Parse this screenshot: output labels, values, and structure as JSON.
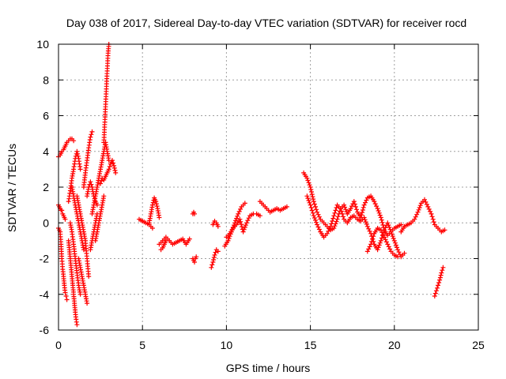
{
  "chart_data": {
    "type": "scatter",
    "title": "Day 038 of 2017, Sidereal Day-to-day VTEC variation (SDTVAR) for receiver rocd",
    "xlabel": "GPS time / hours",
    "ylabel": "SDTVAR / TECUs",
    "xlim": [
      0,
      25
    ],
    "ylim": [
      -6,
      10
    ],
    "xticks": [
      0,
      5,
      10,
      15,
      20,
      25
    ],
    "yticks": [
      -6,
      -4,
      -2,
      0,
      2,
      4,
      6,
      8,
      10
    ],
    "grid": true,
    "marker": "+",
    "color": "#ff0000",
    "series": [
      {
        "name": "t0a",
        "x": [
          0.0,
          0.1,
          0.2,
          0.3,
          0.4,
          0.5,
          0.6,
          0.7,
          0.8,
          0.9
        ],
        "y": [
          3.7,
          3.8,
          4.0,
          4.1,
          4.3,
          4.5,
          4.6,
          4.7,
          4.7,
          4.6
        ]
      },
      {
        "name": "t0b",
        "x": [
          0.0,
          0.05,
          0.1,
          0.15,
          0.2,
          0.25,
          0.3,
          0.35,
          0.4
        ],
        "y": [
          1.0,
          0.9,
          0.8,
          0.7,
          0.7,
          0.5,
          0.4,
          0.3,
          0.2
        ]
      },
      {
        "name": "t0c",
        "x": [
          0.0,
          0.05,
          0.1,
          0.15,
          0.2,
          0.25,
          0.3,
          0.35,
          0.4,
          0.45,
          0.5
        ],
        "y": [
          -0.3,
          -0.4,
          -0.5,
          -1.2,
          -2.0,
          -2.6,
          -3.0,
          -3.5,
          -3.9,
          -4.1,
          -4.3
        ]
      },
      {
        "name": "t1a",
        "x": [
          0.6,
          0.65,
          0.7,
          0.75,
          0.8,
          0.85,
          0.9,
          0.95,
          1.0,
          1.05,
          1.1
        ],
        "y": [
          -1.0,
          -1.5,
          -2.0,
          -2.5,
          -3.0,
          -3.5,
          -4.0,
          -4.5,
          -5.0,
          -5.4,
          -5.7
        ]
      },
      {
        "name": "t1b",
        "x": [
          0.6,
          0.7,
          0.8,
          0.9,
          1.0,
          1.1,
          1.2,
          1.3
        ],
        "y": [
          1.2,
          1.8,
          2.5,
          3.0,
          3.6,
          4.0,
          3.6,
          3.0
        ]
      },
      {
        "name": "t1c",
        "x": [
          0.7,
          0.8,
          0.9,
          1.0,
          1.1,
          1.2,
          1.3
        ],
        "y": [
          0.0,
          -0.5,
          -1.2,
          -2.0,
          -2.8,
          -3.5,
          -4.0
        ]
      },
      {
        "name": "t1d",
        "x": [
          0.8,
          0.9,
          1.0,
          1.1,
          1.2,
          1.3,
          1.4,
          1.5
        ],
        "y": [
          2.0,
          1.5,
          1.0,
          0.5,
          0.0,
          -0.5,
          -1.0,
          -1.5
        ]
      },
      {
        "name": "t1e",
        "x": [
          1.1,
          1.2,
          1.3,
          1.4,
          1.5,
          1.6,
          1.7,
          1.8
        ],
        "y": [
          1.5,
          1.0,
          0.5,
          0.0,
          -0.5,
          -1.0,
          -2.0,
          -3.0
        ]
      },
      {
        "name": "t1f",
        "x": [
          1.2,
          1.3,
          1.4,
          1.5,
          1.6,
          1.7
        ],
        "y": [
          -2.0,
          -2.5,
          -3.0,
          -3.5,
          -4.0,
          -4.5
        ]
      },
      {
        "name": "t1g",
        "x": [
          1.5,
          1.6,
          1.7,
          1.8,
          1.9,
          2.0
        ],
        "y": [
          2.0,
          2.8,
          3.5,
          4.2,
          4.8,
          5.1
        ]
      },
      {
        "name": "t1h",
        "x": [
          1.7,
          1.8,
          1.9,
          2.0,
          2.1,
          2.2,
          2.3
        ],
        "y": [
          1.5,
          2.0,
          2.3,
          2.0,
          1.5,
          1.2,
          1.0
        ]
      },
      {
        "name": "t1i",
        "x": [
          1.9,
          2.0,
          2.1,
          2.2,
          2.3
        ],
        "y": [
          -1.5,
          -1.0,
          -0.5,
          0.0,
          0.5
        ]
      },
      {
        "name": "t2a",
        "x": [
          2.0,
          2.1,
          2.2,
          2.3,
          2.4,
          2.5,
          2.6,
          2.7,
          2.8,
          2.9,
          3.0
        ],
        "y": [
          0.5,
          1.0,
          1.5,
          2.0,
          2.5,
          3.0,
          3.5,
          4.0,
          4.5,
          4.0,
          3.5
        ]
      },
      {
        "name": "t2b",
        "x": [
          2.2,
          2.3,
          2.4,
          2.5,
          2.6,
          2.7
        ],
        "y": [
          -1.0,
          -0.5,
          0.0,
          0.5,
          1.0,
          1.5
        ]
      },
      {
        "name": "t2c",
        "x": [
          2.5,
          2.6,
          2.7,
          2.8,
          2.9,
          3.0,
          3.1,
          3.2,
          3.3,
          3.4
        ],
        "y": [
          2.2,
          2.5,
          2.4,
          2.6,
          2.8,
          3.0,
          3.3,
          3.5,
          3.2,
          2.8
        ]
      },
      {
        "name": "t2d",
        "x": [
          2.7,
          2.75,
          2.8,
          2.85,
          2.9,
          2.95,
          3.0
        ],
        "y": [
          4.5,
          5.5,
          6.5,
          7.5,
          8.5,
          9.5,
          10.0
        ]
      },
      {
        "name": "t5a",
        "x": [
          4.8,
          5.0,
          5.2,
          5.4,
          5.6
        ],
        "y": [
          0.2,
          0.1,
          0.0,
          -0.1,
          -0.3
        ]
      },
      {
        "name": "t5b",
        "x": [
          5.4,
          5.5,
          5.6,
          5.7,
          5.8,
          5.9,
          6.0
        ],
        "y": [
          0.0,
          0.5,
          1.0,
          1.4,
          1.2,
          0.8,
          0.3
        ]
      },
      {
        "name": "t6a",
        "x": [
          6.0,
          6.2,
          6.4,
          6.6,
          6.8,
          7.0,
          7.2,
          7.4,
          7.6,
          7.8
        ],
        "y": [
          -1.2,
          -1.0,
          -0.8,
          -1.0,
          -1.2,
          -1.1,
          -1.0,
          -0.9,
          -1.2,
          -0.9
        ]
      },
      {
        "name": "t6b",
        "x": [
          6.1,
          6.2,
          6.3,
          6.4
        ],
        "y": [
          -1.5,
          -1.4,
          -1.2,
          -1.0
        ]
      },
      {
        "name": "t8a",
        "x": [
          8.0,
          8.05,
          8.1,
          8.15,
          8.2
        ],
        "y": [
          -2.0,
          -2.1,
          -2.2,
          -2.0,
          -1.9
        ]
      },
      {
        "name": "t8b",
        "x": [
          8.0,
          8.05,
          8.1
        ],
        "y": [
          0.5,
          0.6,
          0.5
        ]
      },
      {
        "name": "t9a",
        "x": [
          9.1,
          9.2,
          9.3,
          9.4,
          9.5
        ],
        "y": [
          -2.5,
          -2.2,
          -1.8,
          -1.5,
          -1.6
        ]
      },
      {
        "name": "t9b",
        "x": [
          9.2,
          9.3,
          9.4,
          9.5
        ],
        "y": [
          -0.1,
          0.1,
          0.0,
          -0.2
        ]
      },
      {
        "name": "t10a",
        "x": [
          9.9,
          10.1,
          10.3,
          10.5,
          10.7,
          10.9,
          11.1
        ],
        "y": [
          -1.3,
          -1.0,
          -0.5,
          0.0,
          0.5,
          0.9,
          1.1
        ]
      },
      {
        "name": "t10b",
        "x": [
          10.0,
          10.2,
          10.4,
          10.6,
          10.8,
          11.0,
          11.2,
          11.4,
          11.6,
          11.8,
          12.0
        ],
        "y": [
          -0.8,
          -0.6,
          -0.3,
          -0.1,
          0.2,
          -0.5,
          0.0,
          0.4,
          0.5,
          0.5,
          0.4
        ]
      },
      {
        "name": "t12a",
        "x": [
          12.0,
          12.2,
          12.4,
          12.6,
          12.8,
          13.0,
          13.2,
          13.4,
          13.6
        ],
        "y": [
          1.2,
          1.0,
          0.8,
          0.6,
          0.7,
          0.8,
          0.7,
          0.8,
          0.9
        ]
      },
      {
        "name": "t15a",
        "x": [
          14.6,
          14.8,
          15.0,
          15.2,
          15.4,
          15.6,
          15.8,
          16.0,
          16.2,
          16.4,
          16.6,
          16.8,
          17.0,
          17.2,
          17.4,
          17.6,
          17.8,
          18.0,
          18.2,
          18.4,
          18.6,
          18.8,
          19.0,
          19.2,
          19.4,
          19.6,
          19.8,
          20.0,
          20.2,
          20.4
        ],
        "y": [
          2.8,
          2.5,
          2.0,
          1.2,
          0.6,
          0.2,
          0.0,
          -0.2,
          -0.4,
          -0.3,
          0.2,
          0.8,
          1.0,
          0.5,
          0.8,
          1.2,
          0.6,
          0.3,
          1.0,
          1.4,
          1.5,
          1.2,
          0.8,
          0.3,
          -0.4,
          -0.7,
          -0.5,
          -0.3,
          -0.2,
          -0.1
        ]
      },
      {
        "name": "t15b",
        "x": [
          14.8,
          15.0,
          15.2,
          15.4,
          15.6,
          15.8,
          16.0,
          16.2,
          16.4,
          16.6,
          16.8,
          17.0,
          17.2,
          17.4,
          17.6,
          17.8,
          18.0,
          18.2,
          18.4,
          18.6,
          18.8,
          19.0,
          19.2,
          19.4,
          19.6,
          19.8,
          20.0,
          20.2,
          20.4,
          20.6
        ],
        "y": [
          1.5,
          1.0,
          0.4,
          -0.1,
          -0.5,
          -0.8,
          -0.6,
          -0.2,
          0.4,
          1.0,
          0.8,
          0.2,
          0.0,
          0.3,
          0.4,
          0.2,
          0.1,
          0.3,
          -0.2,
          -0.6,
          -1.2,
          -1.5,
          -1.0,
          -0.4,
          0.0,
          -0.5,
          -1.0,
          -1.5,
          -1.9,
          -1.7
        ]
      },
      {
        "name": "t18a",
        "x": [
          18.4,
          18.6,
          18.8,
          19.0,
          19.2,
          19.4,
          19.6,
          19.8,
          20.0,
          20.2
        ],
        "y": [
          -1.6,
          -1.2,
          -0.6,
          -0.3,
          -0.4,
          -0.8,
          -1.2,
          -1.6,
          -1.8,
          -1.9
        ]
      },
      {
        "name": "t20a",
        "x": [
          20.4,
          20.6,
          20.8,
          21.0,
          21.2,
          21.4,
          21.6,
          21.8,
          22.0,
          22.2,
          22.4,
          22.6,
          22.8,
          23.0
        ],
        "y": [
          -0.5,
          -0.2,
          -0.1,
          0.0,
          0.2,
          0.6,
          1.1,
          1.3,
          0.9,
          0.5,
          -0.1,
          -0.3,
          -0.5,
          -0.4
        ]
      },
      {
        "name": "t22a",
        "x": [
          22.4,
          22.5,
          22.6,
          22.7,
          22.8,
          22.9
        ],
        "y": [
          -4.1,
          -3.8,
          -3.5,
          -3.2,
          -2.8,
          -2.5
        ]
      }
    ]
  }
}
